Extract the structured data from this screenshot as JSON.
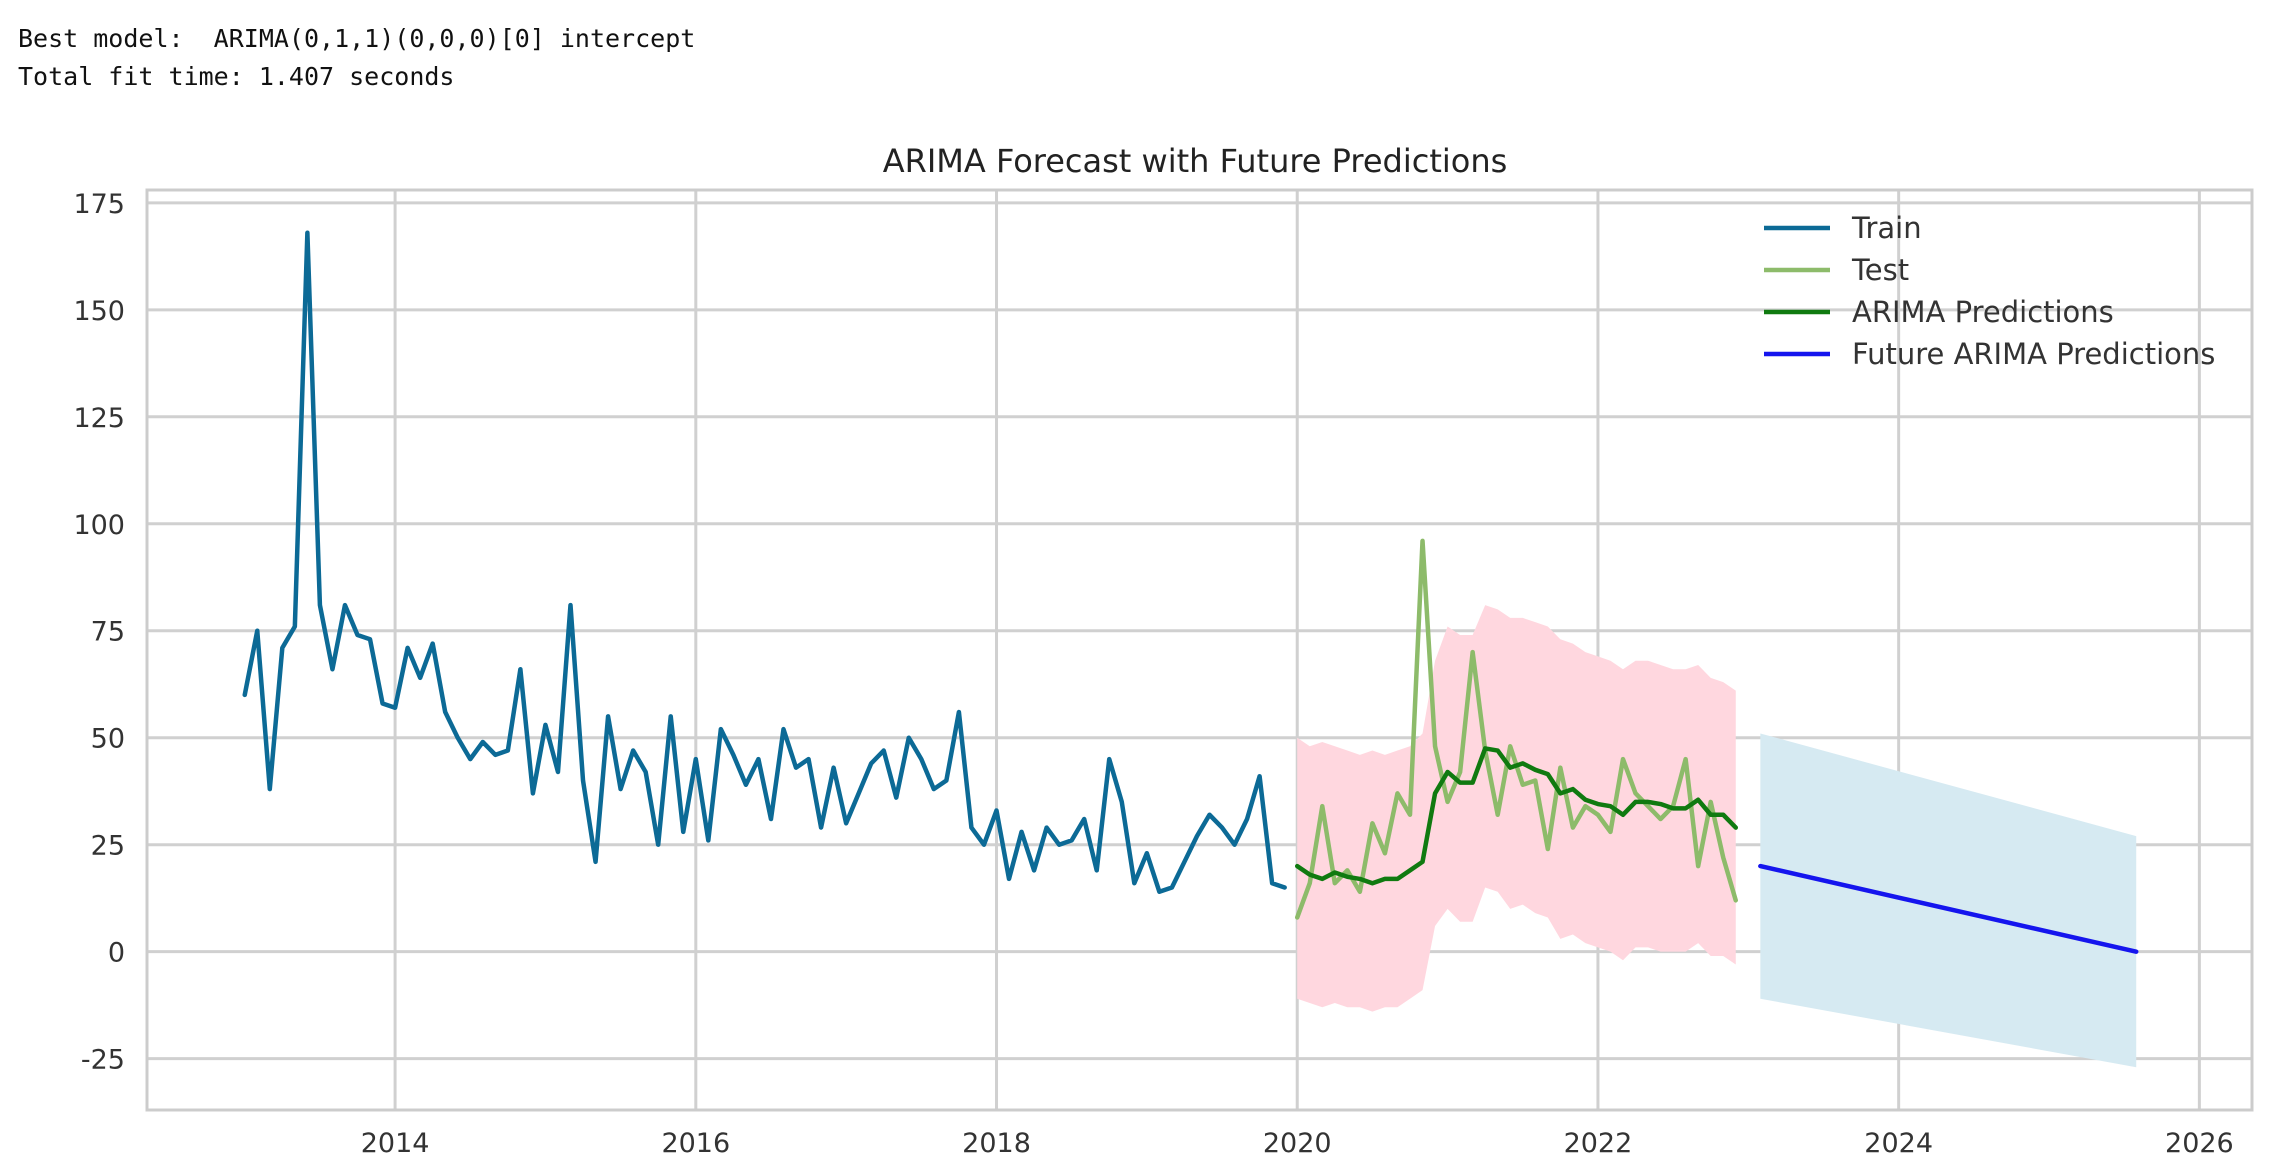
{
  "console": {
    "line1": "Best model:  ARIMA(0,1,1)(0,0,0)[0] intercept",
    "line2": "Total fit time: 1.407 seconds"
  },
  "chart_data": {
    "type": "line",
    "title": "ARIMA Forecast with Future Predictions",
    "xlabel": "",
    "ylabel": "",
    "xlim": [
      2012.35,
      2026.35
    ],
    "ylim": [
      -37,
      178
    ],
    "x_ticks": [
      2014,
      2016,
      2018,
      2020,
      2022,
      2024,
      2026
    ],
    "y_ticks": [
      175,
      150,
      125,
      100,
      75,
      50,
      25,
      0,
      -25
    ],
    "grid": true,
    "legend_position": "top-right",
    "series": [
      {
        "name": "Train",
        "color": "#0c6a96",
        "x_start": 2013.0,
        "x_step": 0.08333,
        "values": [
          60,
          75,
          38,
          71,
          76,
          168,
          81,
          66,
          81,
          74,
          73,
          58,
          57,
          71,
          64,
          72,
          56,
          50,
          45,
          49,
          46,
          47,
          66,
          37,
          53,
          42,
          81,
          40,
          21,
          55,
          38,
          47,
          42,
          25,
          55,
          28,
          45,
          26,
          52,
          46,
          39,
          45,
          31,
          52,
          43,
          45,
          29,
          43,
          30,
          37,
          44,
          47,
          36,
          50,
          45,
          38,
          40,
          56,
          29,
          25,
          33,
          17,
          28,
          19,
          29,
          25,
          26,
          31,
          19,
          45,
          35,
          16,
          23,
          14,
          15,
          21,
          27,
          32,
          29,
          25,
          31,
          41,
          16,
          15
        ]
      },
      {
        "name": "Test",
        "color": "#8dbb6a",
        "x_start": 2020.0,
        "x_step": 0.08333,
        "values": [
          8,
          16,
          34,
          16,
          19,
          14,
          30,
          23,
          37,
          32,
          96,
          48,
          35,
          42,
          70,
          47,
          32,
          48,
          39,
          40,
          24,
          43,
          29,
          34,
          32,
          28,
          45,
          37,
          34,
          31,
          34,
          45,
          20,
          35,
          22,
          12
        ]
      },
      {
        "name": "ARIMA Predictions",
        "color": "#107a10",
        "x_start": 2020.0,
        "x_step": 0.08333,
        "values": [
          20,
          18,
          17,
          18.5,
          17.5,
          17,
          16,
          17,
          17,
          19,
          21,
          37,
          42,
          39.5,
          39.5,
          47.5,
          47,
          43,
          44,
          42.5,
          41.5,
          37,
          38,
          35.5,
          34.5,
          34,
          32,
          35,
          35,
          34.5,
          33.5,
          33.5,
          35.5,
          32,
          32,
          29
        ]
      },
      {
        "name": "Future ARIMA Predictions",
        "color": "#1515ee",
        "x": [
          2023.08,
          2025.58
        ],
        "values": [
          20,
          0
        ]
      }
    ],
    "confidence_bands": [
      {
        "for": "ARIMA Predictions",
        "color": "#ffd7df",
        "x_start": 2020.0,
        "x_step": 0.08333,
        "upper": [
          50,
          48,
          49,
          48,
          47,
          46,
          47,
          46,
          47,
          48,
          51,
          68,
          76,
          74,
          74,
          81,
          80,
          78,
          78,
          77,
          76,
          73,
          72,
          70,
          69,
          68,
          66,
          68,
          68,
          67,
          66,
          66,
          67,
          64,
          63,
          61
        ],
        "lower": [
          -11,
          -12,
          -13,
          -12,
          -13,
          -13,
          -14,
          -13,
          -13,
          -11,
          -9,
          6,
          10,
          7,
          7,
          15,
          14,
          10,
          11,
          9,
          8,
          3,
          4,
          2,
          1,
          0,
          -2,
          1,
          1,
          0,
          0,
          0,
          2,
          -1,
          -1,
          -3
        ]
      },
      {
        "for": "Future ARIMA Predictions",
        "color": "#d6eaf2",
        "x": [
          2023.08,
          2025.58
        ],
        "upper": [
          51,
          27
        ],
        "lower": [
          -11,
          -27
        ]
      }
    ]
  }
}
